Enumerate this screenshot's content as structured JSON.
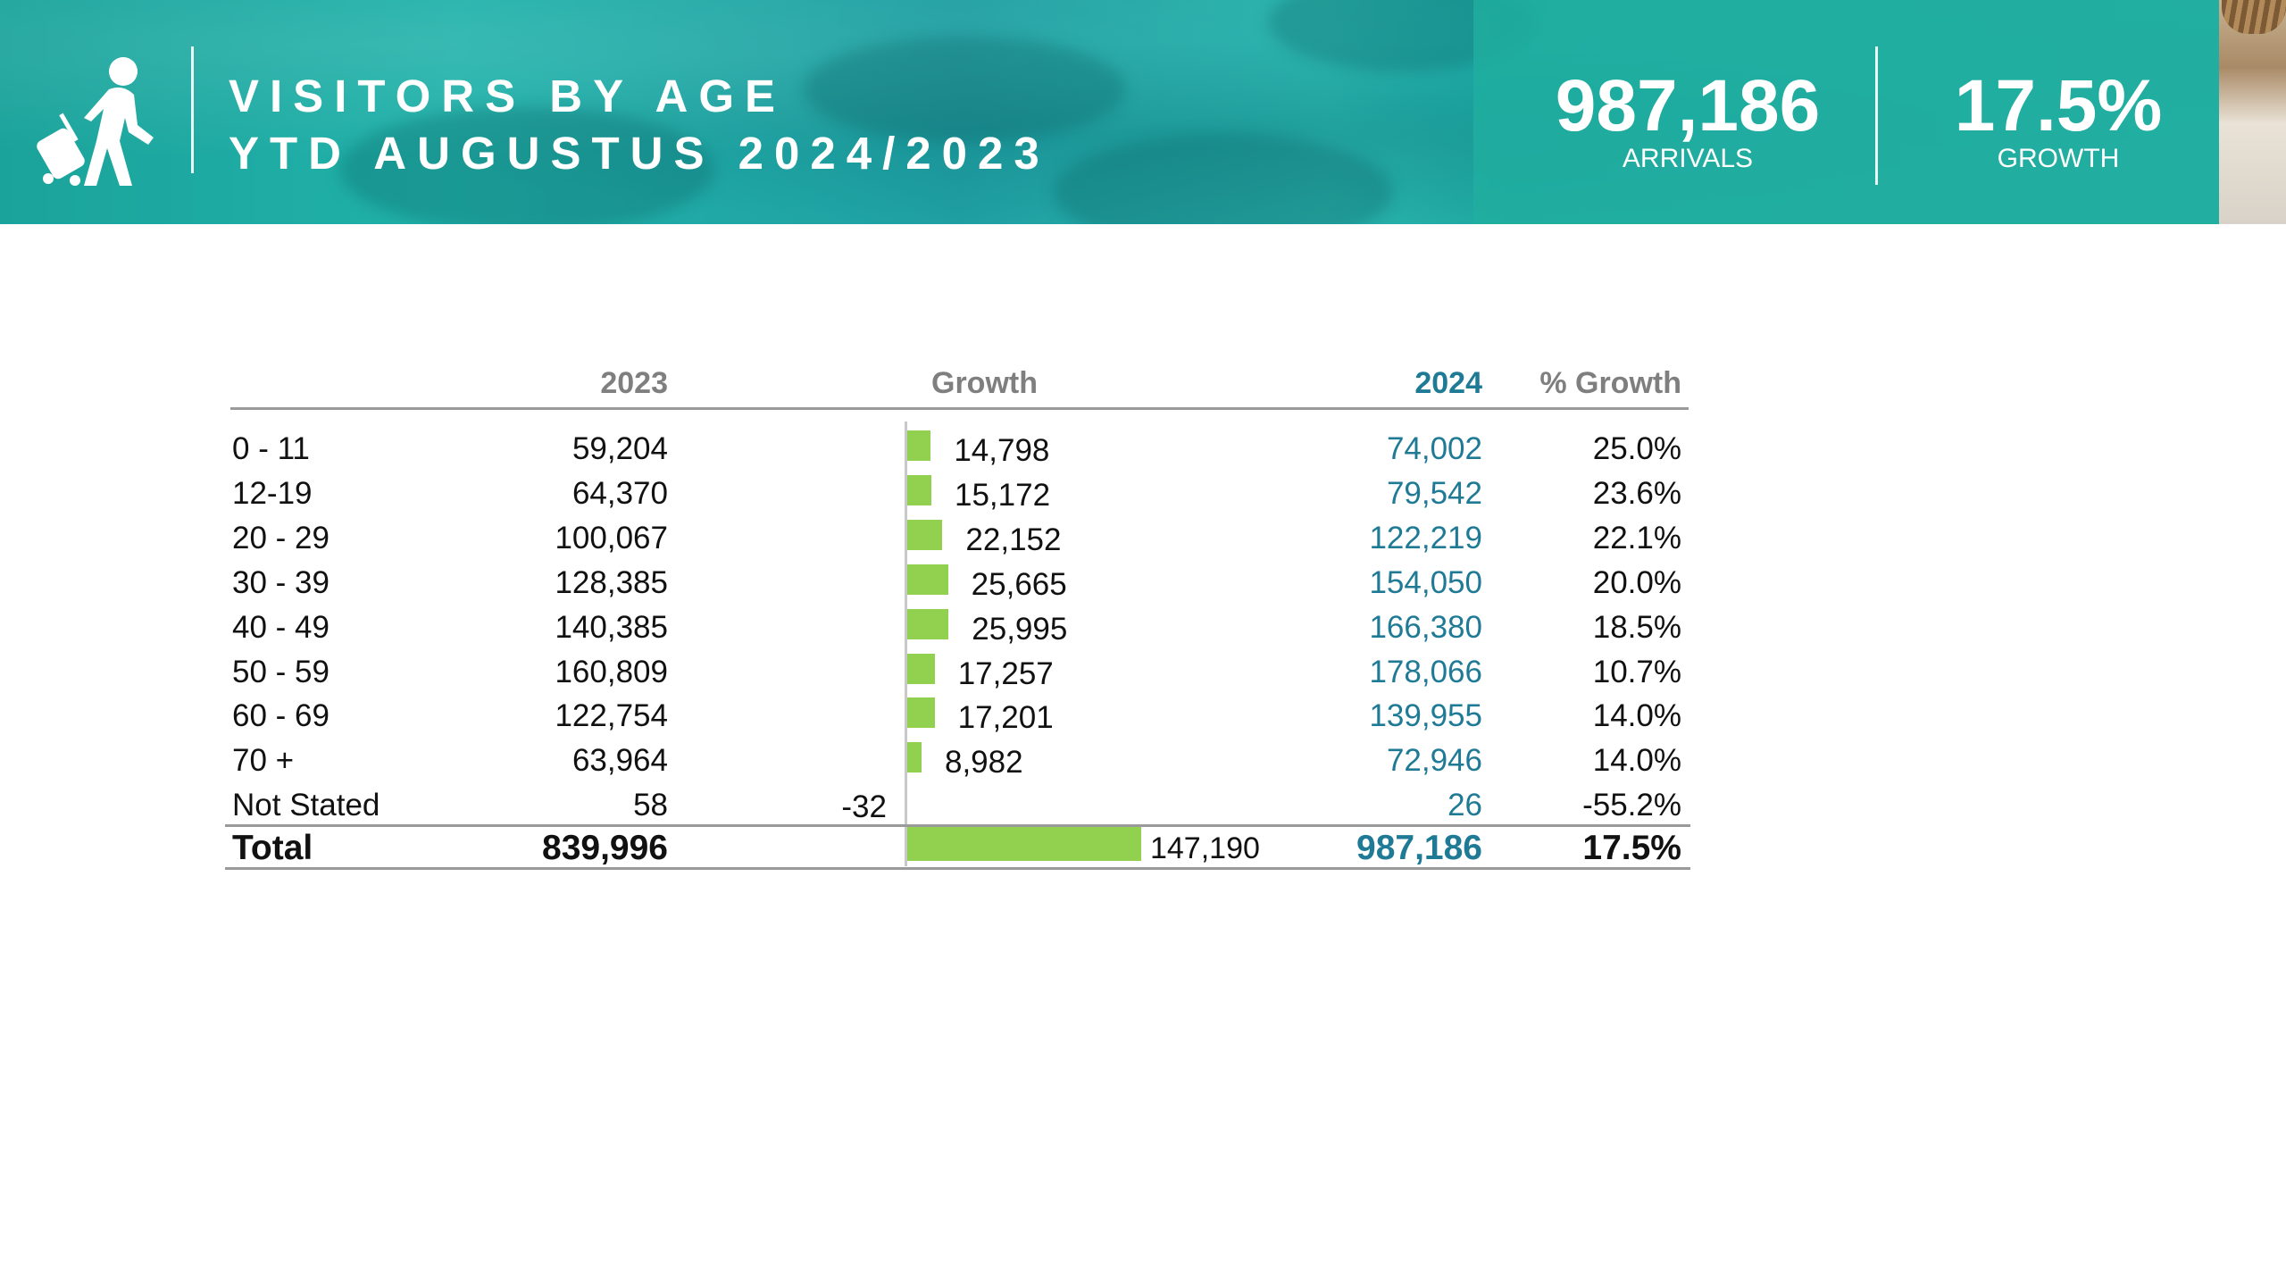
{
  "header": {
    "title_line1": "VISITORS BY AGE",
    "title_line2": "YTD AUGUSTUS 2024/2023",
    "arrivals_value": "987,186",
    "arrivals_label": "ARRIVALS",
    "growth_value": "17.5%",
    "growth_label": "GROWTH",
    "icon": "traveler-with-suitcase-icon"
  },
  "table": {
    "columns": {
      "c2023": "2023",
      "growth": "Growth",
      "c2024": "2024",
      "pct": "% Growth"
    },
    "rows": [
      {
        "label": "0 - 11",
        "v2023": "59,204",
        "growth": "14,798",
        "v2024": "74,002",
        "pct": "25.0%"
      },
      {
        "label": "12-19",
        "v2023": "64,370",
        "growth": "15,172",
        "v2024": "79,542",
        "pct": "23.6%"
      },
      {
        "label": "20 - 29",
        "v2023": "100,067",
        "growth": "22,152",
        "v2024": "122,219",
        "pct": "22.1%"
      },
      {
        "label": "30 - 39",
        "v2023": "128,385",
        "growth": "25,665",
        "v2024": "154,050",
        "pct": "20.0%"
      },
      {
        "label": "40 - 49",
        "v2023": "140,385",
        "growth": "25,995",
        "v2024": "166,380",
        "pct": "18.5%"
      },
      {
        "label": "50 - 59",
        "v2023": "160,809",
        "growth": "17,257",
        "v2024": "178,066",
        "pct": "10.7%"
      },
      {
        "label": "60 - 69",
        "v2023": "122,754",
        "growth": "17,201",
        "v2024": "139,955",
        "pct": "14.0%"
      },
      {
        "label": "70 +",
        "v2023": "63,964",
        "growth": "8,982",
        "v2024": "72,946",
        "pct": "14.0%"
      },
      {
        "label": "Not Stated",
        "v2023": "58",
        "growth": "-32",
        "v2024": "26",
        "pct": "-55.2%"
      }
    ],
    "total": {
      "label": "Total",
      "v2023": "839,996",
      "growth": "147,190",
      "v2024": "987,186",
      "pct": "17.5%"
    }
  },
  "colors": {
    "bar": "#92d050",
    "value_2024": "#1f7a96",
    "header_gray": "#7f7f7f",
    "banner_teal": "#1fa8a3"
  },
  "chart_data": {
    "type": "bar",
    "orientation": "horizontal",
    "categories": [
      "0 - 11",
      "12-19",
      "20 - 29",
      "30 - 39",
      "40 - 49",
      "50 - 59",
      "60 - 69",
      "70 +",
      "Not Stated",
      "Total"
    ],
    "series": [
      {
        "name": "Growth",
        "values": [
          14798,
          15172,
          22152,
          25665,
          25995,
          17257,
          17201,
          8982,
          -32,
          147190
        ]
      }
    ],
    "title": "",
    "xlabel": "",
    "ylabel": "",
    "grid": false
  }
}
